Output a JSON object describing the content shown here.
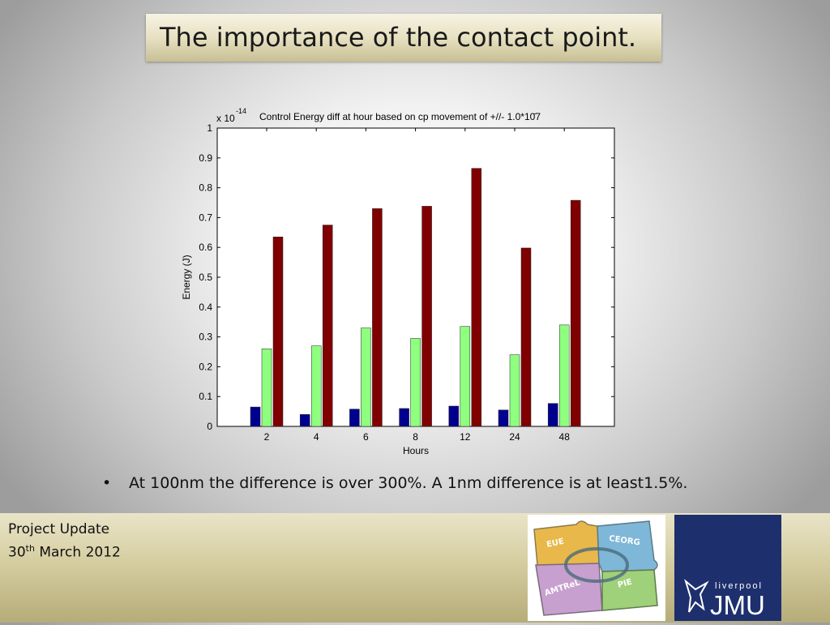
{
  "slide": {
    "title": "The importance of the contact point.",
    "bullet_symbol": "•",
    "bullet_text": "At 100nm the difference is over 300%. A 1nm difference is at least1.5%."
  },
  "footer": {
    "line1": "Project Update",
    "line2_day": "30",
    "line2_sup": "th",
    "line2_rest": " March 2012",
    "puzzle_labels": [
      "EUE",
      "CEORG",
      "PIE",
      "AMTReL"
    ],
    "jmu_small": "liverpool",
    "jmu_big": "JMU"
  },
  "chart_data": {
    "type": "bar",
    "title": "Control Energy diff at hour based on cp movement of +//- 1.0*10̄7",
    "xlabel": "Hours",
    "ylabel": "Energy (J)",
    "exponent_base": "x 10",
    "exponent_power": "-14",
    "categories": [
      "2",
      "4",
      "6",
      "8",
      "12",
      "24",
      "48"
    ],
    "ylim": [
      0,
      1
    ],
    "yticks": [
      "0",
      "0.1",
      "0.2",
      "0.3",
      "0.4",
      "0.5",
      "0.6",
      "0.7",
      "0.8",
      "0.9",
      "1"
    ],
    "series": [
      {
        "color": "#00008f",
        "values": [
          0.065,
          0.04,
          0.058,
          0.06,
          0.068,
          0.055,
          0.077
        ]
      },
      {
        "color": "#8fff7f",
        "values": [
          0.26,
          0.27,
          0.33,
          0.295,
          0.335,
          0.24,
          0.34
        ]
      },
      {
        "color": "#800000",
        "values": [
          0.635,
          0.675,
          0.73,
          0.738,
          0.865,
          0.598,
          0.758
        ]
      }
    ],
    "grid": false,
    "legend": "none"
  }
}
